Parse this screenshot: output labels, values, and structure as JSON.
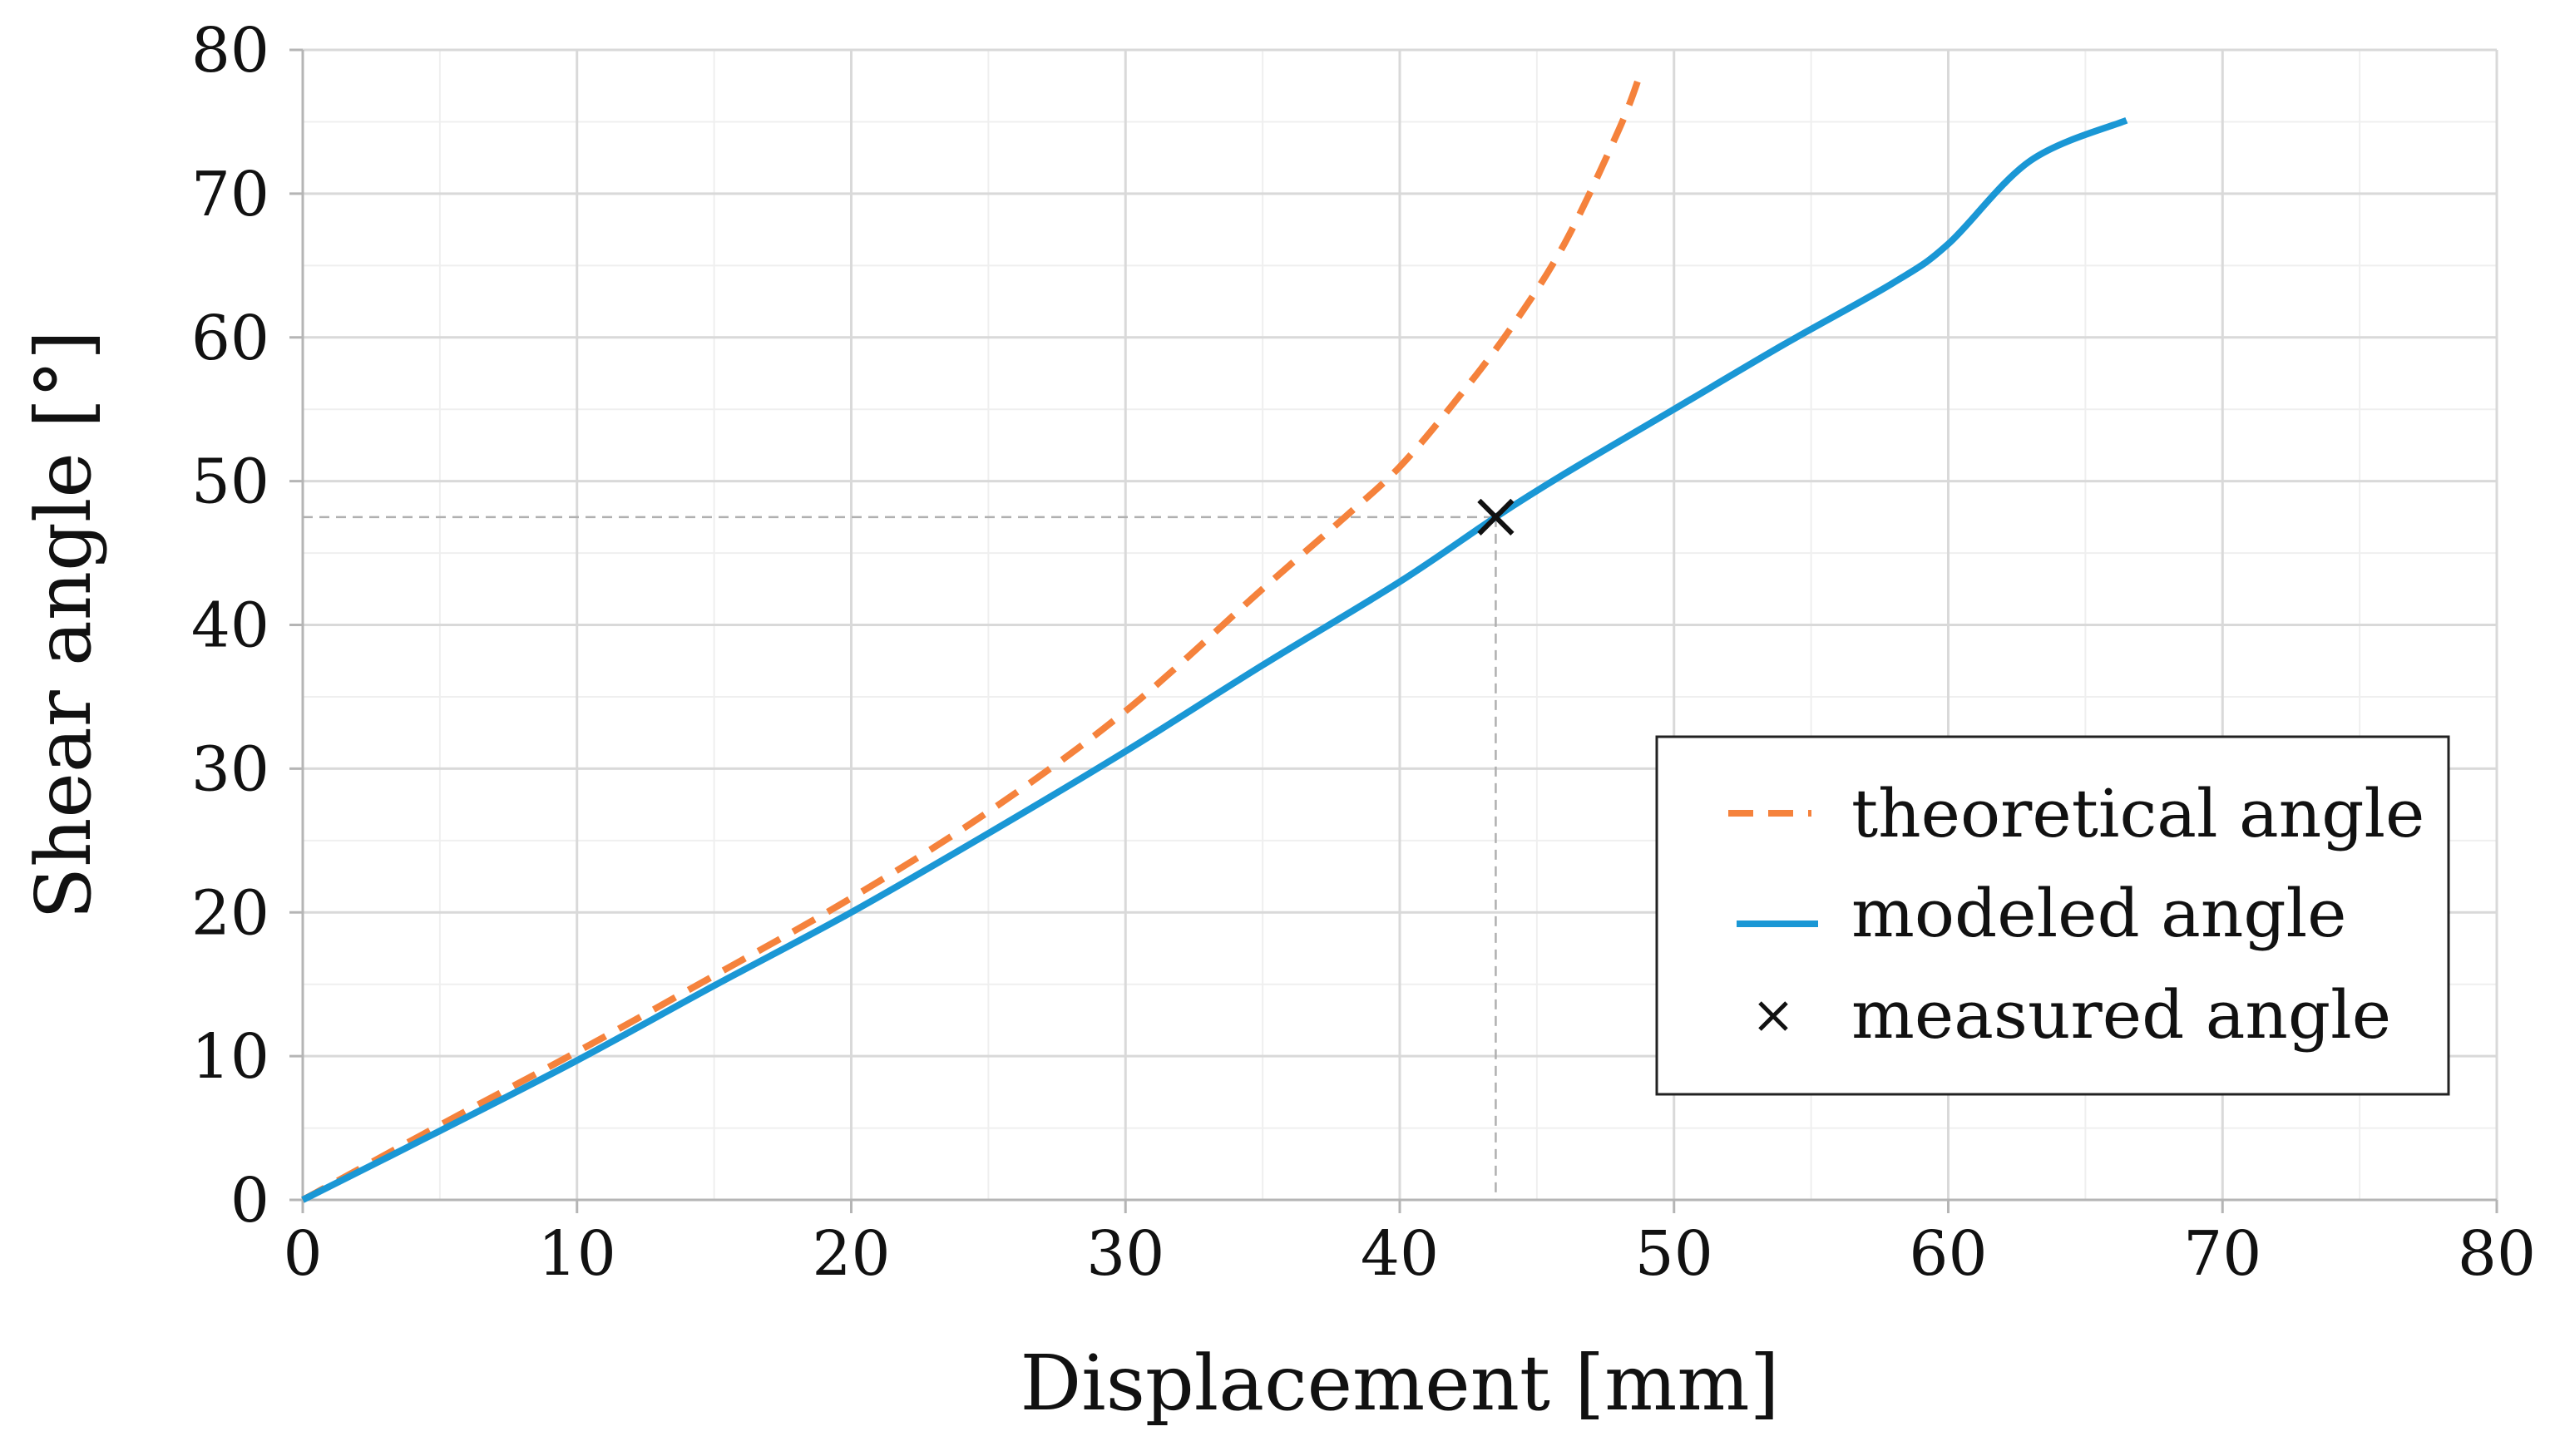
{
  "chart_data": {
    "type": "line",
    "xlabel": "Displacement [mm]",
    "ylabel": "Shear angle [°]",
    "xlim": [
      0,
      80
    ],
    "ylim": [
      0,
      80
    ],
    "xticks": [
      0,
      10,
      20,
      30,
      40,
      50,
      60,
      70,
      80
    ],
    "yticks": [
      0,
      10,
      20,
      30,
      40,
      50,
      60,
      70,
      80
    ],
    "grid": true,
    "legend_position": "bottom-right",
    "series": [
      {
        "name": "theoretical angle",
        "style": "dashed",
        "color": "#f5823c",
        "x": [
          0,
          5,
          10,
          15,
          20,
          25,
          30,
          35,
          38,
          40,
          42,
          44,
          46,
          48,
          48.8
        ],
        "y": [
          0,
          5.2,
          10.3,
          15.6,
          21.0,
          27.0,
          34.0,
          42.5,
          47.5,
          51.0,
          55.5,
          60.5,
          66.5,
          74.5,
          78.5
        ]
      },
      {
        "name": "modeled angle",
        "style": "solid",
        "color": "#1a97d5",
        "x": [
          0,
          5,
          10,
          15,
          20,
          25,
          30,
          35,
          40,
          43.5,
          46,
          50,
          54,
          58,
          60,
          63,
          66.5
        ],
        "y": [
          0,
          4.8,
          9.7,
          14.9,
          20.0,
          25.5,
          31.2,
          37.2,
          43.0,
          47.5,
          50.5,
          55.0,
          59.5,
          63.8,
          66.5,
          72.3,
          75.1
        ]
      }
    ],
    "markers": [
      {
        "name": "measured angle",
        "symbol": "x",
        "color": "#111111",
        "x": 43.5,
        "y": 47.5
      }
    ]
  }
}
